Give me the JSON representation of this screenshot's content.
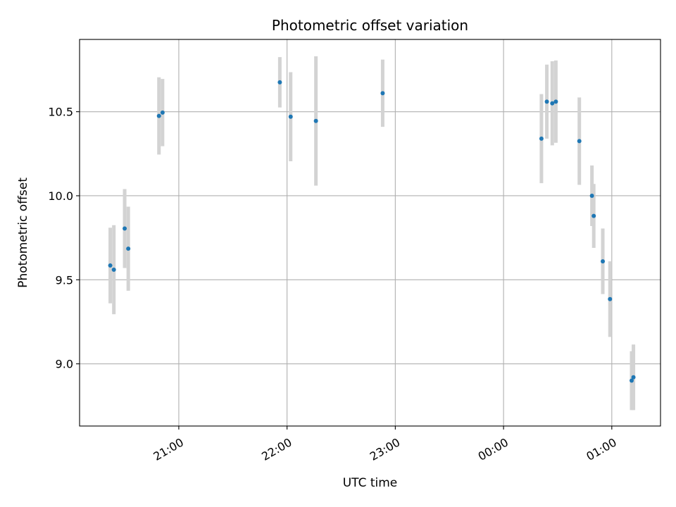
{
  "chart_data": {
    "type": "scatter",
    "title": "Photometric offset variation",
    "xlabel": "UTC time",
    "ylabel": "Photometric offset",
    "x_unit": "hours",
    "x_range": [
      "20:05",
      "01:27"
    ],
    "ylim": [
      8.63,
      10.93
    ],
    "x_ticks": [
      {
        "time": "21:00",
        "label": "21:00"
      },
      {
        "time": "22:00",
        "label": "22:00"
      },
      {
        "time": "23:00",
        "label": "23:00"
      },
      {
        "time": "00:00",
        "label": "00:00"
      },
      {
        "time": "01:00",
        "label": "01:00"
      }
    ],
    "y_ticks": [
      {
        "value": 9.0,
        "label": "9.0"
      },
      {
        "value": 9.5,
        "label": "9.5"
      },
      {
        "value": 10.0,
        "label": "10.0"
      },
      {
        "value": 10.5,
        "label": "10.5"
      }
    ],
    "grid": true,
    "point_color": "#1f77b4",
    "errorbar_color": "#d3d3d3",
    "points": [
      {
        "time": "20:22",
        "y": 9.585,
        "err": 0.225
      },
      {
        "time": "20:24",
        "y": 9.56,
        "err": 0.265
      },
      {
        "time": "20:30",
        "y": 9.805,
        "err": 0.235
      },
      {
        "time": "20:32",
        "y": 9.685,
        "err": 0.25
      },
      {
        "time": "20:49",
        "y": 10.475,
        "err": 0.23
      },
      {
        "time": "20:51",
        "y": 10.495,
        "err": 0.2
      },
      {
        "time": "21:56",
        "y": 10.675,
        "err": 0.15
      },
      {
        "time": "22:02",
        "y": 10.47,
        "err": 0.265
      },
      {
        "time": "22:16",
        "y": 10.445,
        "err": 0.385
      },
      {
        "time": "22:53",
        "y": 10.61,
        "err": 0.2
      },
      {
        "time": "00:21",
        "y": 10.34,
        "err": 0.265
      },
      {
        "time": "00:24",
        "y": 10.56,
        "err": 0.22
      },
      {
        "time": "00:27",
        "y": 10.55,
        "err": 0.25
      },
      {
        "time": "00:29",
        "y": 10.56,
        "err": 0.245
      },
      {
        "time": "00:42",
        "y": 10.325,
        "err": 0.26
      },
      {
        "time": "00:49",
        "y": 10.0,
        "err": 0.18
      },
      {
        "time": "00:50",
        "y": 9.88,
        "err": 0.19
      },
      {
        "time": "00:55",
        "y": 9.61,
        "err": 0.195
      },
      {
        "time": "00:59",
        "y": 9.385,
        "err": 0.225
      },
      {
        "time": "01:11",
        "y": 8.9,
        "err": 0.175
      },
      {
        "time": "01:12",
        "y": 8.92,
        "err": 0.195
      }
    ]
  }
}
